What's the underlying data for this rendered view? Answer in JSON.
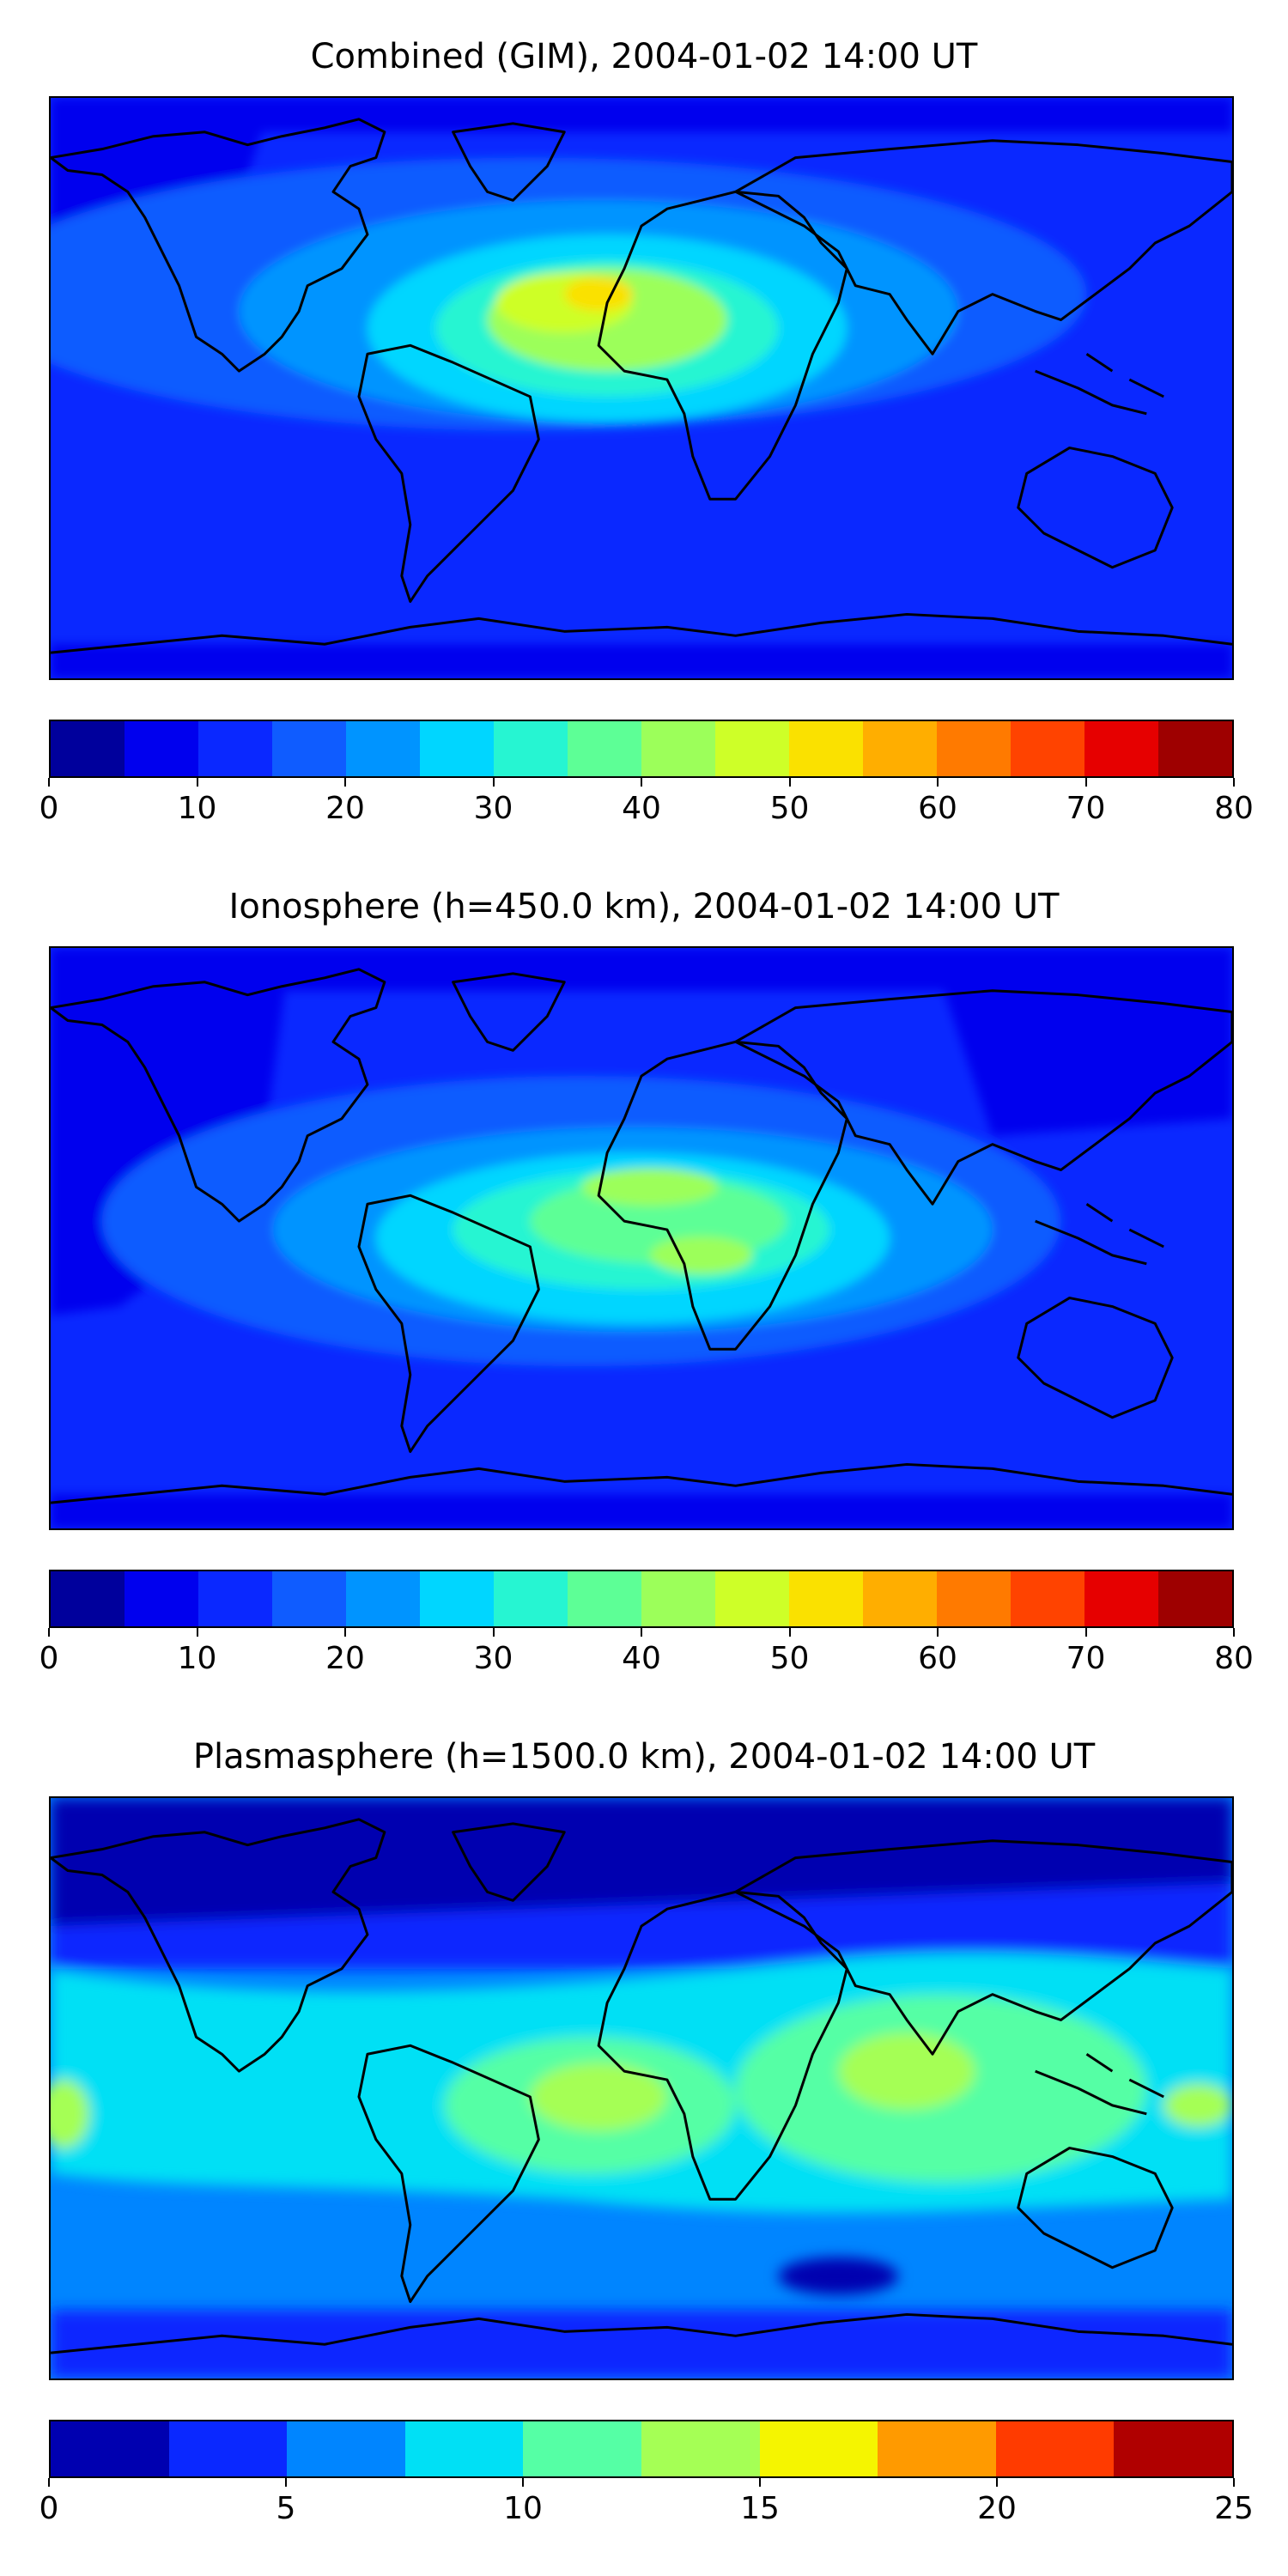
{
  "panels": [
    {
      "title": "Combined (GIM), 2004-01-02 14:00 UT",
      "colorbar": {
        "ticks": [
          "0",
          "10",
          "20",
          "30",
          "40",
          "50",
          "60",
          "70",
          "80"
        ],
        "colors": [
          "#00009c",
          "#0000ee",
          "#0a28ff",
          "#0f5cff",
          "#0094ff",
          "#00d6ff",
          "#26f5d2",
          "#5dff96",
          "#9cff5a",
          "#ceff28",
          "#fae100",
          "#ffae00",
          "#ff7a00",
          "#ff4300",
          "#e60000",
          "#9e0000"
        ]
      }
    },
    {
      "title": "Ionosphere  (h=450.0 km), 2004-01-02 14:00 UT",
      "colorbar": {
        "ticks": [
          "0",
          "10",
          "20",
          "30",
          "40",
          "50",
          "60",
          "70",
          "80"
        ],
        "colors": [
          "#00009c",
          "#0000ee",
          "#0a28ff",
          "#0f5cff",
          "#0094ff",
          "#00d6ff",
          "#26f5d2",
          "#5dff96",
          "#9cff5a",
          "#ceff28",
          "#fae100",
          "#ffae00",
          "#ff7a00",
          "#ff4300",
          "#e60000",
          "#9e0000"
        ]
      }
    },
    {
      "title": "Plasmasphere (h=1500.0 km), 2004-01-02 14:00 UT",
      "colorbar": {
        "ticks": [
          "0",
          "5",
          "10",
          "15",
          "20",
          "25"
        ],
        "colors": [
          "#0000b0",
          "#0a28ff",
          "#0085ff",
          "#00e0f5",
          "#55ffa5",
          "#a5ff55",
          "#f5f500",
          "#ff9a00",
          "#ff3b00",
          "#b00000"
        ]
      }
    }
  ]
}
